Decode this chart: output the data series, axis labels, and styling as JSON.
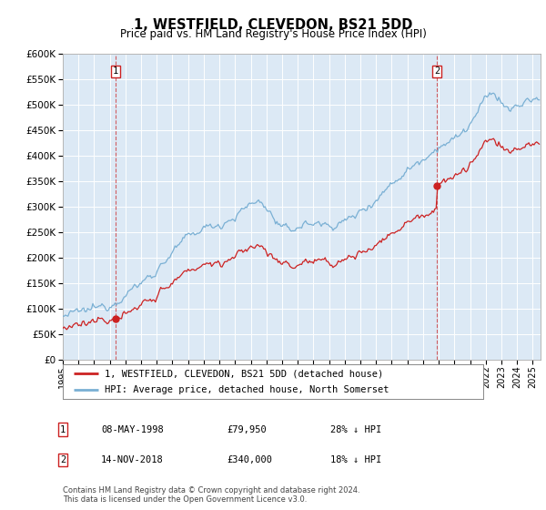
{
  "title": "1, WESTFIELD, CLEVEDON, BS21 5DD",
  "subtitle": "Price paid vs. HM Land Registry's House Price Index (HPI)",
  "plot_bg_color": "#dce9f5",
  "ylim": [
    0,
    600000
  ],
  "yticks": [
    0,
    50000,
    100000,
    150000,
    200000,
    250000,
    300000,
    350000,
    400000,
    450000,
    500000,
    550000,
    600000
  ],
  "hpi_color": "#7ab0d4",
  "price_color": "#cc2222",
  "sale1_date": 1998.36,
  "sale1_price": 79950,
  "sale1_label": "1",
  "sale2_date": 2018.87,
  "sale2_price": 340000,
  "sale2_label": "2",
  "legend1_text": "1, WESTFIELD, CLEVEDON, BS21 5DD (detached house)",
  "legend2_text": "HPI: Average price, detached house, North Somerset",
  "table_row1": [
    "1",
    "08-MAY-1998",
    "£79,950",
    "28% ↓ HPI"
  ],
  "table_row2": [
    "2",
    "14-NOV-2018",
    "£340,000",
    "18% ↓ HPI"
  ],
  "footer": "Contains HM Land Registry data © Crown copyright and database right 2024.\nThis data is licensed under the Open Government Licence v3.0.",
  "xmin": 1995.0,
  "xmax": 2025.5
}
